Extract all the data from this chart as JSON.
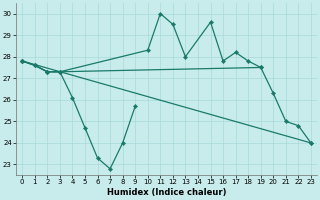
{
  "xlabel": "Humidex (Indice chaleur)",
  "bg_color": "#c8ecec",
  "line_color": "#1a7a6a",
  "xlim": [
    -0.5,
    23.5
  ],
  "ylim": [
    22.5,
    30.5
  ],
  "yticks": [
    23,
    24,
    25,
    26,
    27,
    28,
    29,
    30
  ],
  "xticks": [
    0,
    1,
    2,
    3,
    4,
    5,
    6,
    7,
    8,
    9,
    10,
    11,
    12,
    13,
    14,
    15,
    16,
    17,
    18,
    19,
    20,
    21,
    22,
    23
  ],
  "series": [
    {
      "x": [
        0,
        1,
        2,
        3,
        4,
        5,
        6,
        7,
        8,
        9
      ],
      "y": [
        27.8,
        27.6,
        27.3,
        27.3,
        26.1,
        24.7,
        23.3,
        22.8,
        24.0,
        25.7
      ]
    },
    {
      "x": [
        0,
        1,
        2,
        3,
        10,
        11,
        12,
        13,
        15,
        16,
        17,
        18,
        19,
        20,
        21,
        22,
        23
      ],
      "y": [
        27.8,
        27.6,
        27.3,
        27.3,
        28.3,
        30.0,
        29.5,
        28.0,
        29.6,
        27.8,
        28.2,
        27.8,
        27.5,
        26.3,
        25.0,
        24.8,
        24.0
      ]
    },
    {
      "x": [
        0,
        1,
        2,
        3,
        19
      ],
      "y": [
        27.8,
        27.6,
        27.3,
        27.3,
        27.5
      ]
    },
    {
      "x": [
        0,
        23
      ],
      "y": [
        27.8,
        24.0
      ]
    }
  ]
}
